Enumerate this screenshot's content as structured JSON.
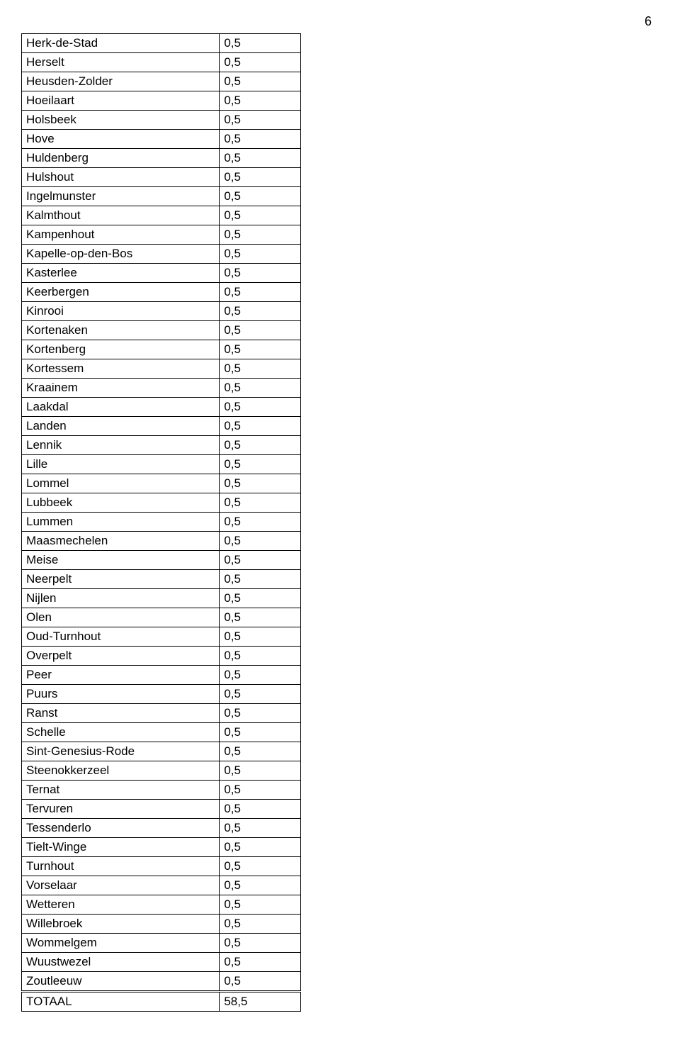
{
  "page_number": "6",
  "table": {
    "rows": [
      {
        "name": "Herk-de-Stad",
        "value": "0,5"
      },
      {
        "name": "Herselt",
        "value": "0,5"
      },
      {
        "name": "Heusden-Zolder",
        "value": "0,5"
      },
      {
        "name": "Hoeilaart",
        "value": "0,5"
      },
      {
        "name": "Holsbeek",
        "value": "0,5"
      },
      {
        "name": "Hove",
        "value": "0,5"
      },
      {
        "name": "Huldenberg",
        "value": "0,5"
      },
      {
        "name": "Hulshout",
        "value": "0,5"
      },
      {
        "name": "Ingelmunster",
        "value": "0,5"
      },
      {
        "name": "Kalmthout",
        "value": "0,5"
      },
      {
        "name": "Kampenhout",
        "value": "0,5"
      },
      {
        "name": "Kapelle-op-den-Bos",
        "value": "0,5"
      },
      {
        "name": "Kasterlee",
        "value": "0,5"
      },
      {
        "name": "Keerbergen",
        "value": "0,5"
      },
      {
        "name": "Kinrooi",
        "value": "0,5"
      },
      {
        "name": "Kortenaken",
        "value": "0,5"
      },
      {
        "name": "Kortenberg",
        "value": "0,5"
      },
      {
        "name": "Kortessem",
        "value": "0,5"
      },
      {
        "name": "Kraainem",
        "value": "0,5"
      },
      {
        "name": "Laakdal",
        "value": "0,5"
      },
      {
        "name": "Landen",
        "value": "0,5"
      },
      {
        "name": "Lennik",
        "value": "0,5"
      },
      {
        "name": "Lille",
        "value": "0,5"
      },
      {
        "name": "Lommel",
        "value": "0,5"
      },
      {
        "name": "Lubbeek",
        "value": "0,5"
      },
      {
        "name": "Lummen",
        "value": "0,5"
      },
      {
        "name": "Maasmechelen",
        "value": "0,5"
      },
      {
        "name": "Meise",
        "value": "0,5"
      },
      {
        "name": "Neerpelt",
        "value": "0,5"
      },
      {
        "name": "Nijlen",
        "value": "0,5"
      },
      {
        "name": "Olen",
        "value": "0,5"
      },
      {
        "name": "Oud-Turnhout",
        "value": "0,5"
      },
      {
        "name": "Overpelt",
        "value": "0,5"
      },
      {
        "name": "Peer",
        "value": "0,5"
      },
      {
        "name": "Puurs",
        "value": "0,5"
      },
      {
        "name": "Ranst",
        "value": "0,5"
      },
      {
        "name": "Schelle",
        "value": "0,5"
      },
      {
        "name": "Sint-Genesius-Rode",
        "value": "0,5"
      },
      {
        "name": "Steenokkerzeel",
        "value": "0,5"
      },
      {
        "name": "Ternat",
        "value": "0,5"
      },
      {
        "name": "Tervuren",
        "value": "0,5"
      },
      {
        "name": "Tessenderlo",
        "value": "0,5"
      },
      {
        "name": "Tielt-Winge",
        "value": "0,5"
      },
      {
        "name": "Turnhout",
        "value": "0,5"
      },
      {
        "name": "Vorselaar",
        "value": "0,5"
      },
      {
        "name": "Wetteren",
        "value": "0,5"
      },
      {
        "name": "Willebroek",
        "value": "0,5"
      },
      {
        "name": "Wommelgem",
        "value": "0,5"
      },
      {
        "name": "Wuustwezel",
        "value": "0,5"
      },
      {
        "name": "Zoutleeuw",
        "value": "0,5"
      }
    ],
    "total": {
      "name": "TOTAAL",
      "value": "58,5"
    }
  }
}
